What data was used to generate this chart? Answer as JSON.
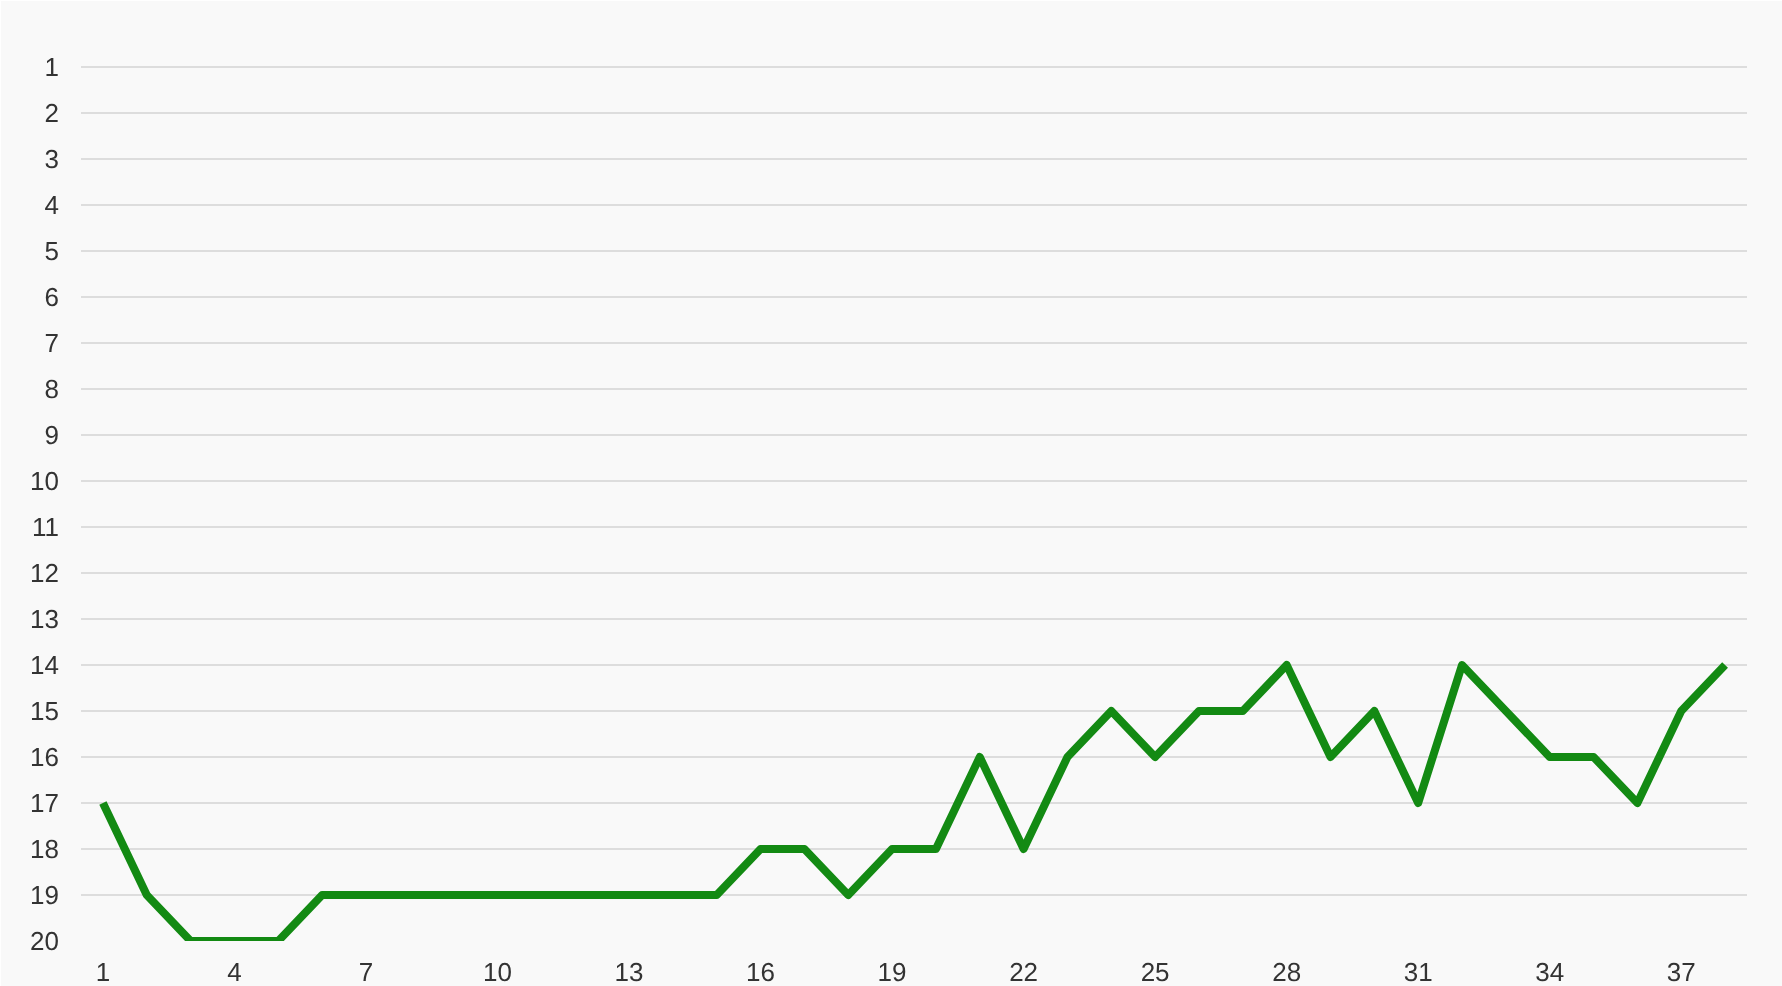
{
  "chart_data": {
    "type": "line",
    "x": [
      1,
      2,
      3,
      4,
      5,
      6,
      7,
      8,
      9,
      10,
      11,
      12,
      13,
      14,
      15,
      16,
      17,
      18,
      19,
      20,
      21,
      22,
      23,
      24,
      25,
      26,
      27,
      28,
      29,
      30,
      31,
      32,
      33,
      34,
      35,
      36,
      37,
      38
    ],
    "series": [
      {
        "color": "#138a13",
        "values": [
          17,
          19,
          20,
          20,
          20,
          19,
          19,
          19,
          19,
          19,
          19,
          19,
          19,
          19,
          19,
          18,
          18,
          19,
          18,
          18,
          16,
          18,
          16,
          15,
          16,
          15,
          15,
          14,
          16,
          15,
          17,
          14,
          15,
          16,
          16,
          17,
          15,
          14
        ]
      }
    ],
    "xlim": [
      0.5,
      38.5
    ],
    "xticks": [
      1,
      4,
      7,
      10,
      13,
      16,
      19,
      22,
      25,
      28,
      31,
      34,
      37
    ],
    "ylim": [
      20,
      0
    ],
    "yticks": [
      {
        "value": 0,
        "label": null
      },
      1,
      2,
      3,
      4,
      5,
      6,
      7,
      8,
      9,
      10,
      11,
      12,
      13,
      14,
      15,
      16,
      17,
      18,
      19,
      20
    ],
    "grid": "y",
    "marker": "none",
    "line_style": "solid"
  }
}
